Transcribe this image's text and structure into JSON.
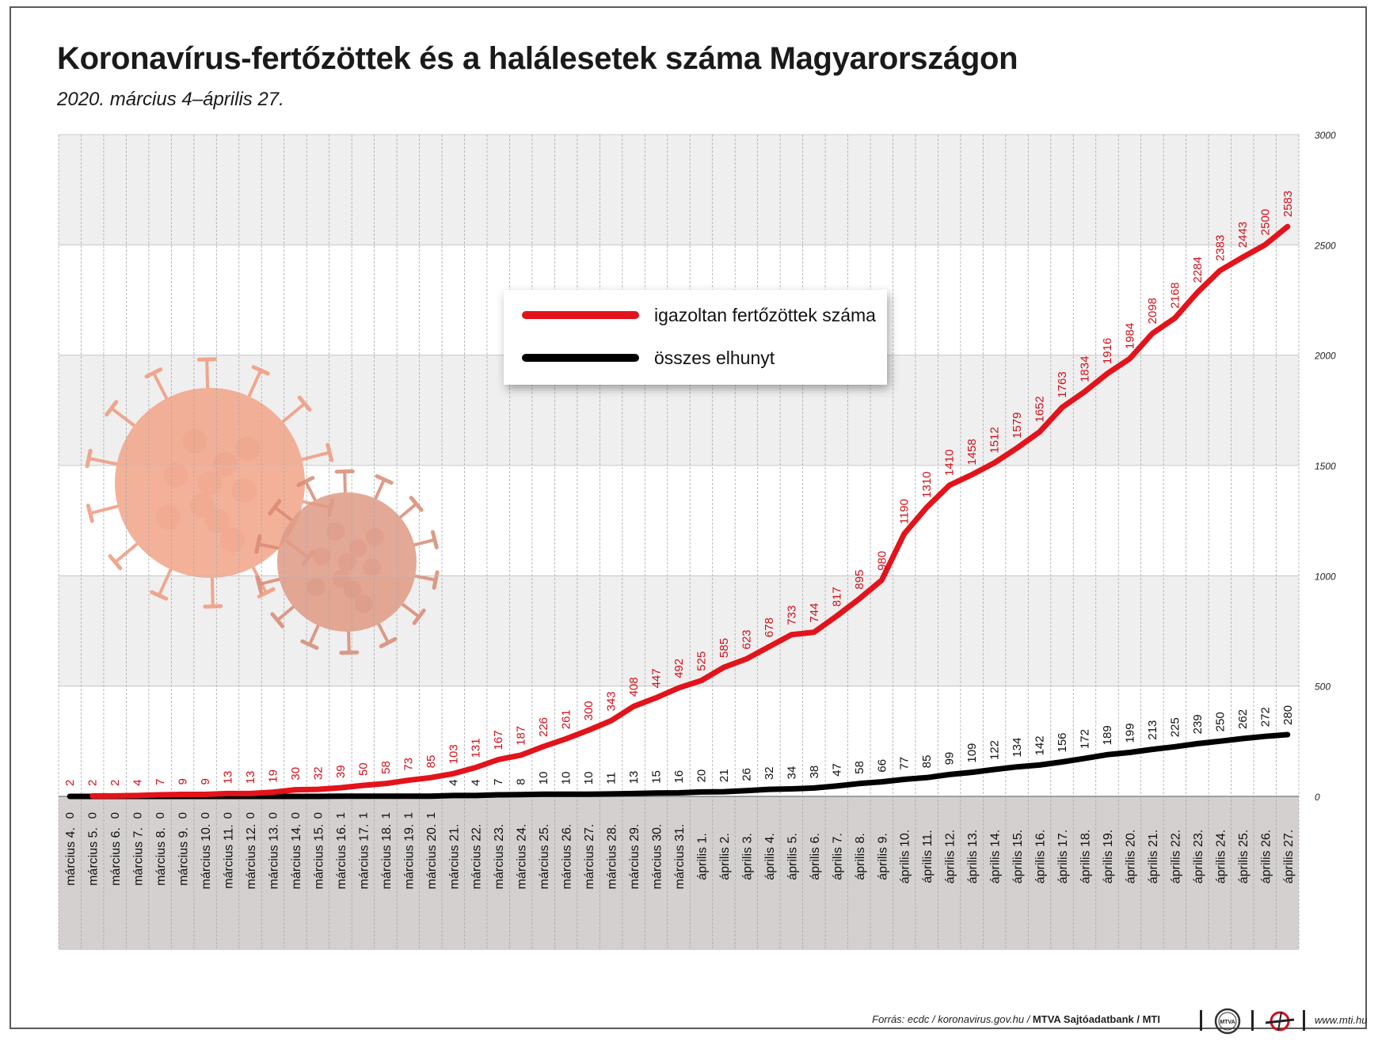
{
  "title": "Koronavírus-fertőzöttek és a halálesetek száma Magyarországon",
  "subtitle": "2020. március 4–április 27.",
  "chart_data": {
    "type": "line",
    "title": "Koronavírus-fertőzöttek és a halálesetek száma Magyarországon",
    "subtitle": "2020. március 4–április 27.",
    "categories": [
      "március 4.",
      "március 5.",
      "március 6.",
      "március 7.",
      "március 8.",
      "március 9.",
      "március 10.",
      "március 11.",
      "március 12.",
      "március 13.",
      "március 14.",
      "március 15.",
      "március 16.",
      "március 17.",
      "március 18.",
      "március 19.",
      "március 20.",
      "március 21.",
      "március 22.",
      "március 23.",
      "március 24.",
      "március 25.",
      "március 26.",
      "március 27.",
      "március 28.",
      "március 29.",
      "március 30.",
      "március 31.",
      "április 1.",
      "április 2.",
      "április 3.",
      "április 4.",
      "április 5.",
      "április 6.",
      "április 7.",
      "április 8.",
      "április 9.",
      "április 10.",
      "április 11.",
      "április 12.",
      "április 13.",
      "április 14.",
      "április 15.",
      "április 16.",
      "április 17.",
      "április 18.",
      "április 19.",
      "április 20.",
      "április 21.",
      "április 22.",
      "április 23.",
      "április 24.",
      "április 25.",
      "április 26.",
      "április 27."
    ],
    "series": [
      {
        "name": "igazoltan fertőzöttek száma",
        "color": "#e3131b",
        "values": [
          2,
          2,
          2,
          4,
          7,
          9,
          9,
          13,
          13,
          19,
          30,
          32,
          39,
          50,
          58,
          73,
          85,
          103,
          131,
          167,
          187,
          226,
          261,
          300,
          343,
          408,
          447,
          492,
          525,
          585,
          623,
          678,
          733,
          744,
          817,
          895,
          980,
          1190,
          1310,
          1410,
          1458,
          1512,
          1579,
          1652,
          1763,
          1834,
          1916,
          1984,
          2098,
          2168,
          2284,
          2383,
          2443,
          2500,
          2583
        ]
      },
      {
        "name": "összes elhunyt",
        "color": "#000000",
        "values": [
          0,
          0,
          0,
          0,
          0,
          0,
          0,
          0,
          0,
          0,
          0,
          0,
          1,
          1,
          1,
          1,
          1,
          4,
          4,
          7,
          8,
          10,
          10,
          10,
          11,
          13,
          15,
          16,
          20,
          21,
          26,
          32,
          34,
          38,
          47,
          58,
          66,
          77,
          85,
          99,
          109,
          122,
          134,
          142,
          156,
          172,
          189,
          199,
          213,
          225,
          239,
          250,
          262,
          272,
          280
        ]
      }
    ],
    "ylim": [
      0,
      3000
    ],
    "yticks": [
      0,
      500,
      1000,
      1500,
      2000,
      2500,
      3000
    ],
    "legend": "top-center",
    "grid": true
  },
  "footer": {
    "source_prefix": "Forrás: ecdc / koronavirus.gov.hu / ",
    "source_bold": "MTVA Sajtóadatbank / MTI",
    "logo_text": "MTVA",
    "website": "www.mti.hu"
  }
}
